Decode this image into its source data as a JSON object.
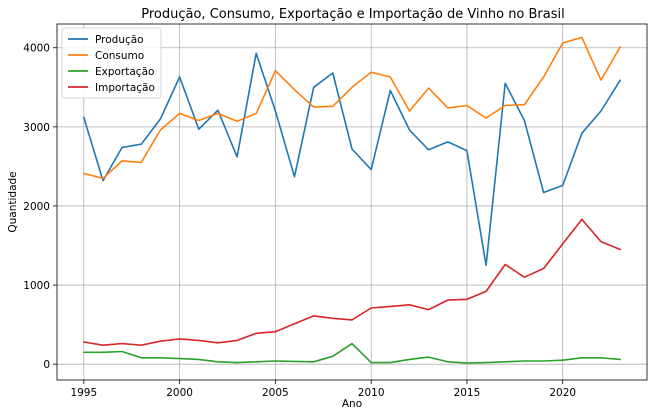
{
  "chart_data": {
    "type": "line",
    "title": "Produção, Consumo, Exportação e Importação de Vinho no Brasil",
    "xlabel": "Ano",
    "ylabel": "Quantidade",
    "xlim": [
      1993.6,
      2024.4
    ],
    "ylim": [
      -200,
      4300
    ],
    "x_ticks": [
      1995,
      2000,
      2005,
      2010,
      2015,
      2020
    ],
    "y_ticks": [
      0,
      1000,
      2000,
      3000,
      4000
    ],
    "grid": true,
    "legend_position": "top-left",
    "x": [
      1995,
      1996,
      1997,
      1998,
      1999,
      2000,
      2001,
      2002,
      2003,
      2004,
      2005,
      2006,
      2007,
      2008,
      2009,
      2010,
      2011,
      2012,
      2013,
      2014,
      2015,
      2016,
      2017,
      2018,
      2019,
      2020,
      2021,
      2022,
      2023
    ],
    "series": [
      {
        "name": "Produção",
        "color": "#1f77b4",
        "values": [
          3120,
          2320,
          2740,
          2780,
          3100,
          3630,
          2970,
          3210,
          2620,
          3930,
          3200,
          2370,
          3500,
          3680,
          2720,
          2460,
          3460,
          2960,
          2710,
          2810,
          2700,
          1250,
          3550,
          3080,
          2170,
          2260,
          2920,
          3200,
          3590
        ]
      },
      {
        "name": "Consumo",
        "color": "#ff7f0e",
        "values": [
          2410,
          2350,
          2570,
          2550,
          2960,
          3170,
          3080,
          3170,
          3070,
          3170,
          3710,
          3470,
          3250,
          3260,
          3500,
          3690,
          3630,
          3200,
          3490,
          3240,
          3270,
          3110,
          3270,
          3280,
          3630,
          4060,
          4130,
          3590,
          4010
        ]
      },
      {
        "name": "Exportação",
        "color": "#2ca02c",
        "values": [
          150,
          150,
          160,
          80,
          80,
          70,
          60,
          30,
          20,
          30,
          40,
          35,
          30,
          100,
          260,
          20,
          20,
          60,
          90,
          30,
          15,
          20,
          30,
          40,
          40,
          50,
          80,
          80,
          60
        ]
      },
      {
        "name": "Importação",
        "color": "#d62728",
        "values": [
          280,
          240,
          260,
          240,
          290,
          320,
          300,
          270,
          300,
          390,
          410,
          510,
          610,
          580,
          560,
          710,
          730,
          750,
          690,
          810,
          820,
          920,
          1260,
          1100,
          1210,
          1520,
          1830,
          1550,
          1450
        ]
      }
    ]
  }
}
